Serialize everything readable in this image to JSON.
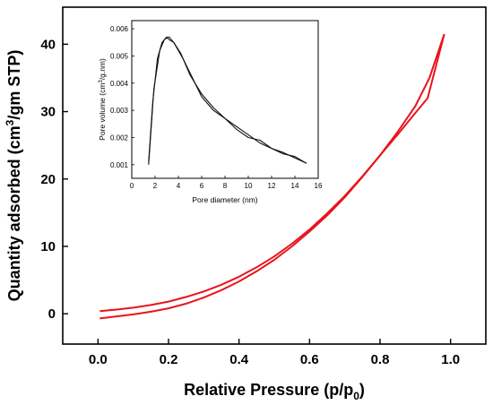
{
  "chart_data": [
    {
      "type": "line",
      "xlabel_main": "Relative Pressure (p/p",
      "xlabel_sub": "0",
      "xlabel_close": ")",
      "ylabel_pre": "Quantity adsorbed (cm",
      "ylabel_sup": "3",
      "ylabel_post": "/gm STP)",
      "xlim": [
        -0.1,
        1.1
      ],
      "ylim": [
        -4.5,
        45.5
      ],
      "xticks": [
        "0.0",
        "0.2",
        "0.4",
        "0.6",
        "0.8",
        "1.0"
      ],
      "yticks": [
        "0",
        "10",
        "20",
        "30",
        "40"
      ],
      "grid": false,
      "colors": {
        "series": "#e8141c"
      },
      "series": [
        {
          "x": [
            0.005,
            0.05,
            0.1,
            0.15,
            0.2,
            0.25,
            0.3,
            0.35,
            0.4,
            0.45,
            0.5,
            0.55,
            0.6,
            0.65,
            0.7,
            0.75,
            0.8,
            0.85,
            0.9,
            0.94,
            0.982
          ],
          "y": [
            -0.7,
            -0.4,
            -0.1,
            0.3,
            0.8,
            1.5,
            2.4,
            3.5,
            4.8,
            6.3,
            8.0,
            10.0,
            12.2,
            14.6,
            17.3,
            20.3,
            23.5,
            27.0,
            30.8,
            35.0,
            41.5
          ]
        },
        {
          "x": [
            0.005,
            0.05,
            0.1,
            0.15,
            0.2,
            0.25,
            0.3,
            0.35,
            0.4,
            0.45,
            0.5,
            0.55,
            0.6,
            0.65,
            0.7,
            0.75,
            0.8,
            0.85,
            0.9,
            0.935,
            0.982
          ],
          "y": [
            0.4,
            0.6,
            0.9,
            1.3,
            1.8,
            2.5,
            3.3,
            4.3,
            5.5,
            6.9,
            8.5,
            10.4,
            12.5,
            14.9,
            17.5,
            20.4,
            23.5,
            26.6,
            29.8,
            32.0,
            41.5
          ]
        }
      ]
    },
    {
      "type": "line",
      "xlabel": "Pore diameter (nm)",
      "ylabel_pre": "Pore volume (cm",
      "ylabel_sup": "3",
      "ylabel_post": "/g.nm)",
      "xlim": [
        0,
        16
      ],
      "ylim": [
        0.0005,
        0.0063
      ],
      "xticks": [
        "0",
        "2",
        "4",
        "6",
        "8",
        "10",
        "12",
        "14",
        "16"
      ],
      "yticks": [
        "0.001",
        "0.002",
        "0.003",
        "0.004",
        "0.005",
        "0.006"
      ],
      "grid": false,
      "colors": {
        "series": "#111111"
      },
      "series": [
        {
          "x": [
            1.45,
            1.8,
            2.2,
            2.6,
            3.0,
            3.2,
            3.6,
            4.2,
            5.0,
            6.0,
            7.0,
            8.0,
            9.0,
            10.0,
            11.0,
            12.0,
            13.0,
            14.0,
            15.0
          ],
          "y": [
            0.0011,
            0.0033,
            0.0049,
            0.0055,
            0.0057,
            0.0056,
            0.0055,
            0.0051,
            0.0043,
            0.0036,
            0.0031,
            0.0027,
            0.0024,
            0.0021,
            0.0018,
            0.0016,
            0.00145,
            0.00125,
            0.00105
          ]
        },
        {
          "x": [
            1.45,
            1.9,
            2.4,
            2.8,
            3.2,
            3.6,
            4.4,
            5.2,
            6.0,
            7.0,
            8.0,
            9.0,
            10.0,
            11.0,
            12.0,
            13.0,
            14.0,
            15.0
          ],
          "y": [
            0.001,
            0.0038,
            0.0052,
            0.0056,
            0.0057,
            0.0055,
            0.0049,
            0.0042,
            0.0035,
            0.003,
            0.0027,
            0.0023,
            0.002,
            0.0019,
            0.0016,
            0.0014,
            0.0013,
            0.00105
          ]
        }
      ]
    }
  ]
}
